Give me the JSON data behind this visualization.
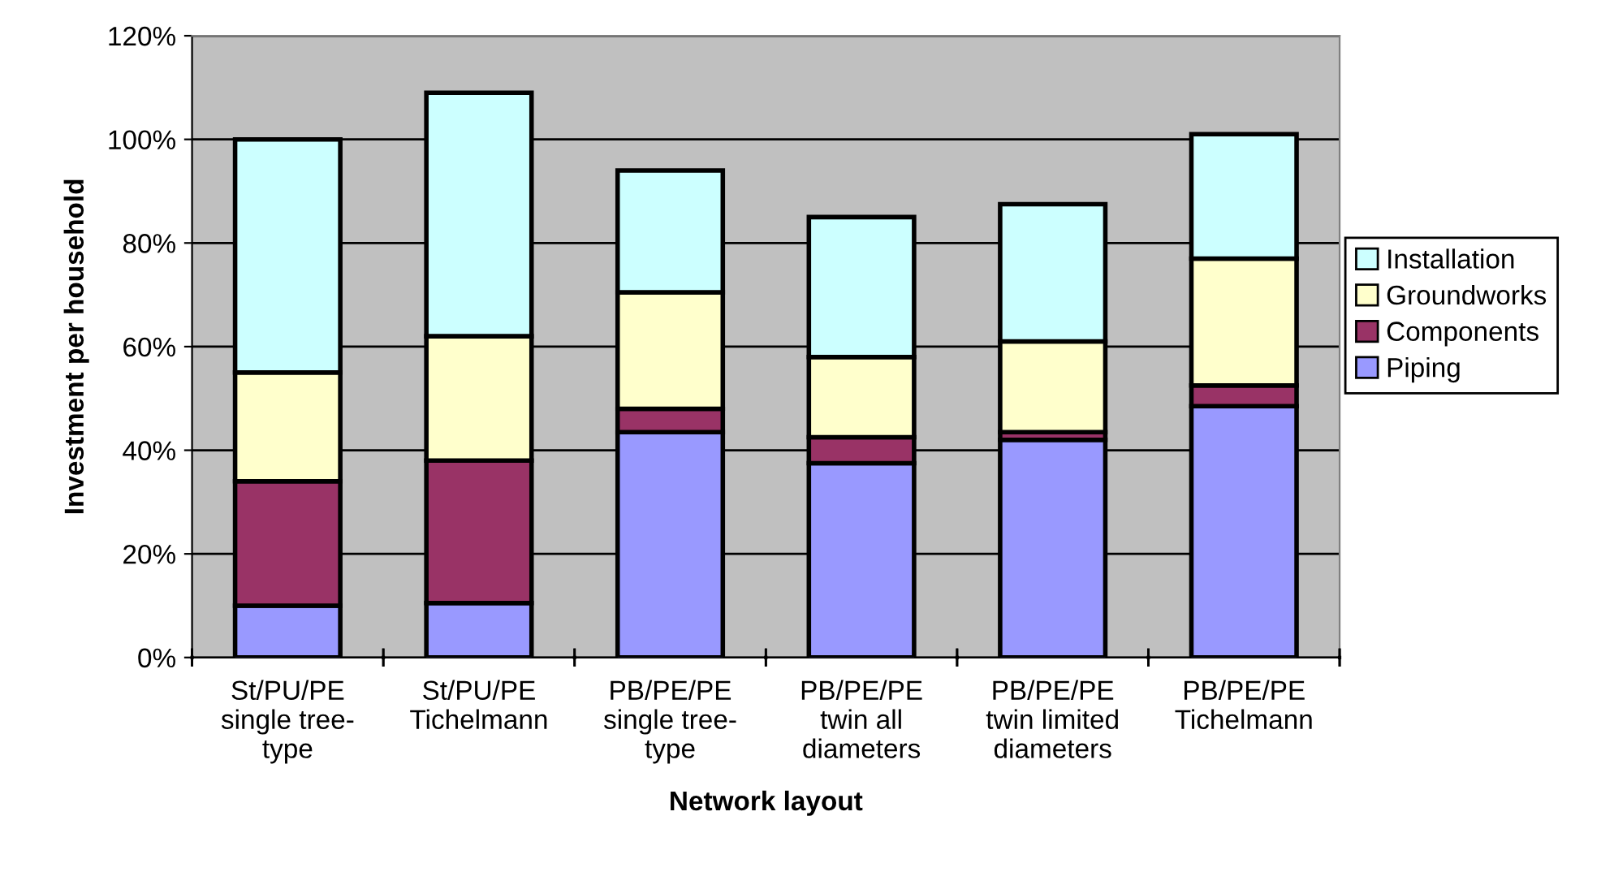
{
  "chart_data": {
    "type": "bar",
    "stacked": true,
    "xlabel": "Network layout",
    "ylabel": "Investment per household",
    "categories": [
      "St/PU/PE\nsingle tree-\ntype",
      "St/PU/PE\nTichelmann",
      "PB/PE/PE\nsingle tree-\ntype",
      "PB/PE/PE\ntwin all\ndiameters",
      "PB/PE/PE\ntwin limited\ndiameters",
      "PB/PE/PE\nTichelmann"
    ],
    "series": [
      {
        "name": "Piping",
        "color": "#9999ff",
        "values": [
          10,
          10.5,
          43.5,
          37.5,
          42,
          48.5
        ]
      },
      {
        "name": "Components",
        "color": "#993366",
        "values": [
          24,
          27.5,
          4.5,
          5,
          1.5,
          4
        ]
      },
      {
        "name": "Groundworks",
        "color": "#ffffcc",
        "values": [
          21,
          24,
          22.5,
          15.5,
          17.5,
          24.5
        ]
      },
      {
        "name": "Installation",
        "color": "#ccffff",
        "values": [
          45,
          47,
          23.5,
          27,
          26.5,
          24
        ]
      }
    ],
    "ylim": [
      0,
      120
    ],
    "yticks": [
      {
        "value": 0,
        "label": "0%"
      },
      {
        "value": 20,
        "label": "20%"
      },
      {
        "value": 40,
        "label": "40%"
      },
      {
        "value": 60,
        "label": "60%"
      },
      {
        "value": 80,
        "label": "80%"
      },
      {
        "value": 100,
        "label": "100%"
      },
      {
        "value": 120,
        "label": "120%"
      }
    ],
    "grid": "y",
    "legend": "right"
  }
}
